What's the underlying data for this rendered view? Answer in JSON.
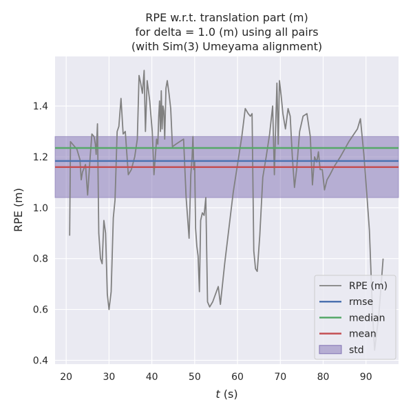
{
  "chart_data": {
    "type": "line",
    "title_lines": [
      "RPE w.r.t. translation part (m)",
      "for delta = 1.0 (m) using all pairs",
      "(with Sim(3) Umeyama alignment)"
    ],
    "xlabel_var": "t",
    "xlabel_unit": " (s)",
    "ylabel": "RPE (m)",
    "xlim": [
      17.4,
      97.6
    ],
    "ylim": [
      0.385,
      1.595
    ],
    "xticks": [
      20,
      30,
      40,
      50,
      60,
      70,
      80,
      90
    ],
    "yticks": [
      0.4,
      0.6,
      0.8,
      1.0,
      1.2,
      1.4
    ],
    "ytick_labels": [
      "0.4",
      "0.6",
      "0.8",
      "1.0",
      "1.2",
      "1.4"
    ],
    "grid": true,
    "legend_position": "lower-right",
    "series": [
      {
        "name": "RPE (m)",
        "color": "#808080",
        "x": [
          20.8,
          21.0,
          22.5,
          23.2,
          23.5,
          23.8,
          24.5,
          25.0,
          25.6,
          26.0,
          26.5,
          26.8,
          27.0,
          27.3,
          27.6,
          28.0,
          28.4,
          28.8,
          29.2,
          29.6,
          30.0,
          30.5,
          31.0,
          31.4,
          31.9,
          32.3,
          32.8,
          33.3,
          33.8,
          34.5,
          35.2,
          36.0,
          36.6,
          37.0,
          37.4,
          37.8,
          38.2,
          38.5,
          38.9,
          39.5,
          40.1,
          40.5,
          40.8,
          41.1,
          41.4,
          41.6,
          41.8,
          42.0,
          42.2,
          42.4,
          42.6,
          42.8,
          43.0,
          43.3,
          43.6,
          44.0,
          44.4,
          44.8,
          45.6,
          46.5,
          47.4,
          48.0,
          48.7,
          49.1,
          49.4,
          49.6,
          49.8,
          50.0,
          50.2,
          50.5,
          50.8,
          51.1,
          51.4,
          51.8,
          52.2,
          52.6,
          53.0,
          53.5,
          54.2,
          55.5,
          56.0,
          57.0,
          59.0,
          61.0,
          61.8,
          62.5,
          63.0,
          63.4,
          63.8,
          64.2,
          64.6,
          65.2,
          65.9,
          66.7,
          67.5,
          68.2,
          68.6,
          68.9,
          69.2,
          69.5,
          69.8,
          70.2,
          70.6,
          71.2,
          71.8,
          72.3,
          72.8,
          73.3,
          73.8,
          74.5,
          75.3,
          76.2,
          77.0,
          77.5,
          78.0,
          78.5,
          78.9,
          79.3,
          79.8,
          80.3,
          80.9,
          81.6,
          82.5,
          84.0,
          86.0,
          88.0,
          88.7,
          89.5,
          90.2,
          90.8,
          91.5,
          92.0,
          93.0,
          94.0
        ],
        "y": [
          0.89,
          1.26,
          1.23,
          1.19,
          1.11,
          1.14,
          1.17,
          1.05,
          1.2,
          1.29,
          1.28,
          1.25,
          1.21,
          1.33,
          0.9,
          0.8,
          0.78,
          0.95,
          0.9,
          0.66,
          0.6,
          0.67,
          0.96,
          1.03,
          1.3,
          1.32,
          1.43,
          1.29,
          1.3,
          1.13,
          1.15,
          1.2,
          1.27,
          1.52,
          1.49,
          1.45,
          1.54,
          1.3,
          1.5,
          1.42,
          1.3,
          1.13,
          1.2,
          1.27,
          1.25,
          1.36,
          1.42,
          1.3,
          1.46,
          1.31,
          1.4,
          1.38,
          1.27,
          1.47,
          1.5,
          1.45,
          1.39,
          1.24,
          1.25,
          1.26,
          1.27,
          1.04,
          0.88,
          1.13,
          1.2,
          1.28,
          1.15,
          1.18,
          0.92,
          0.85,
          0.81,
          0.67,
          0.95,
          0.98,
          0.97,
          1.04,
          0.63,
          0.61,
          0.63,
          0.69,
          0.62,
          0.78,
          1.06,
          1.28,
          1.39,
          1.37,
          1.36,
          1.37,
          0.83,
          0.76,
          0.75,
          0.89,
          1.12,
          1.2,
          1.29,
          1.4,
          1.13,
          1.31,
          1.49,
          1.25,
          1.5,
          1.44,
          1.37,
          1.31,
          1.39,
          1.36,
          1.2,
          1.08,
          1.15,
          1.3,
          1.36,
          1.37,
          1.28,
          1.09,
          1.2,
          1.18,
          1.22,
          1.15,
          1.15,
          1.07,
          1.11,
          1.13,
          1.16,
          1.2,
          1.26,
          1.31,
          1.35,
          1.21,
          1.05,
          0.91,
          0.6,
          0.44,
          0.58,
          0.8
        ]
      },
      {
        "name": "rmse",
        "color": "#4c72b0",
        "value": 1.184
      },
      {
        "name": "median",
        "color": "#55a868",
        "value": 1.235
      },
      {
        "name": "mean",
        "color": "#c44e52",
        "value": 1.16
      }
    ],
    "std_band": {
      "name": "std",
      "color": "#8172b3",
      "lower": 1.04,
      "upper": 1.28
    }
  }
}
